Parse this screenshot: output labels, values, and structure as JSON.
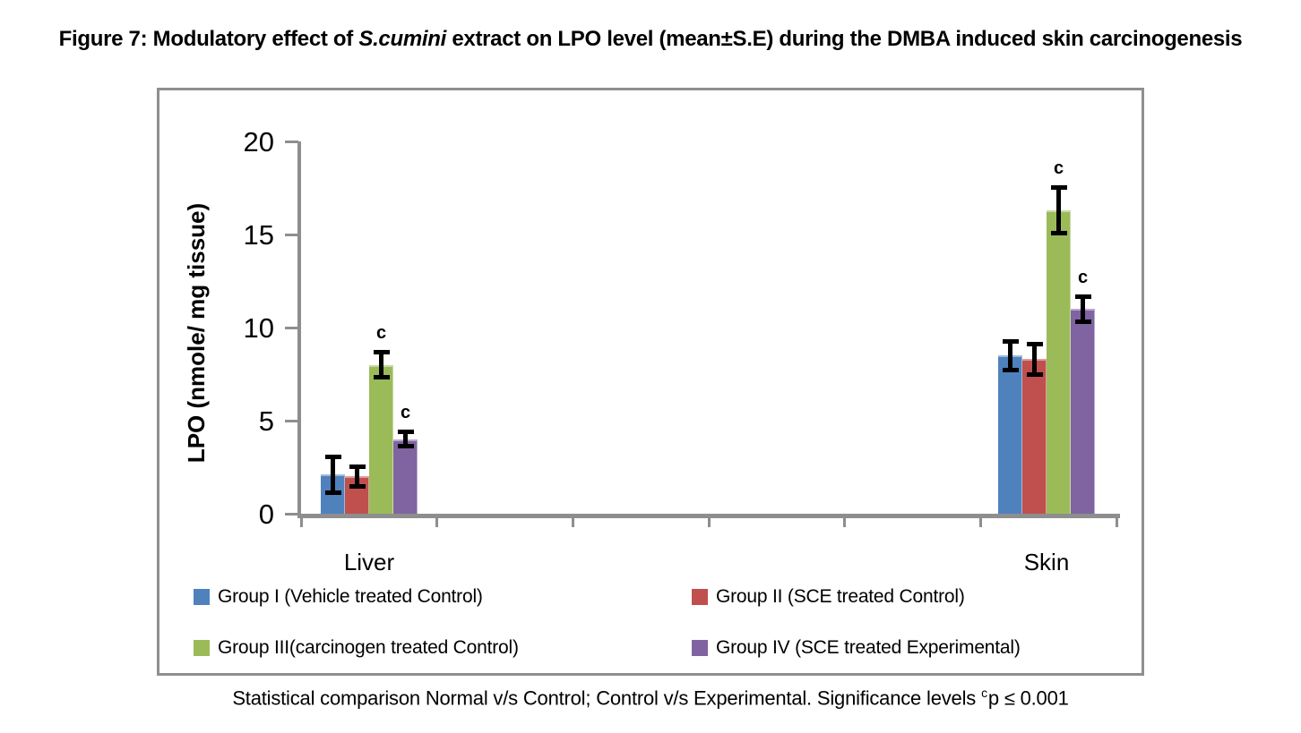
{
  "figure": {
    "title": {
      "part1": "Figure 7: Modulatory effect of ",
      "species": "S.cumini",
      "part2": " extract on LPO level (mean±S.E) during the DMBA induced skin carcinogenesis"
    },
    "footnote": {
      "part1": "Statistical comparison Normal v/s Control; Control v/s Experimental. Significance levels",
      "sig_marker": "c",
      "part2": "p ≤ 0.001"
    }
  },
  "chart_data": {
    "type": "bar",
    "title": "Figure 7: Modulatory effect of S.cumini extract on LPO level (mean±S.E) during the DMBA induced skin carcinogenesis",
    "xlabel": "",
    "ylabel": "LPO (nmole/ mg tissue)",
    "ylim": [
      0,
      20
    ],
    "yticks": [
      0,
      5,
      10,
      15,
      20
    ],
    "grid": false,
    "legend_position": "bottom-inside",
    "axis_color": "#8e8e8e",
    "error_bars": true,
    "categories": [
      "Liver",
      "Skin"
    ],
    "series": [
      {
        "name": "Group I (Vehicle treated Control)",
        "color": "#4f81bd",
        "values": [
          2.1,
          8.5
        ],
        "errors": [
          1.0,
          0.8
        ],
        "sig": [
          "",
          ""
        ]
      },
      {
        "name": "Group II (SCE treated Control)",
        "color": "#c0504d",
        "values": [
          2.0,
          8.3
        ],
        "errors": [
          0.55,
          0.85
        ],
        "sig": [
          "",
          ""
        ]
      },
      {
        "name": "Group III(carcinogen treated Control)",
        "color": "#9bbb59",
        "values": [
          8.0,
          16.3
        ],
        "errors": [
          0.7,
          1.25
        ],
        "sig": [
          "c",
          "c"
        ]
      },
      {
        "name": "Group IV (SCE treated Experimental)",
        "color": "#8064a2",
        "values": [
          4.0,
          11.0
        ],
        "errors": [
          0.4,
          0.7
        ],
        "sig": [
          "c",
          "c"
        ]
      }
    ]
  }
}
